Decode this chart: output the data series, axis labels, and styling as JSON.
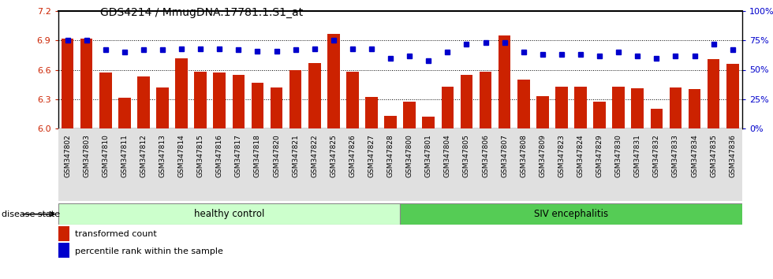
{
  "title": "GDS4214 / MmugDNA.17781.1.S1_at",
  "samples": [
    "GSM347802",
    "GSM347803",
    "GSM347810",
    "GSM347811",
    "GSM347812",
    "GSM347813",
    "GSM347814",
    "GSM347815",
    "GSM347816",
    "GSM347817",
    "GSM347818",
    "GSM347820",
    "GSM347821",
    "GSM347822",
    "GSM347825",
    "GSM347826",
    "GSM347827",
    "GSM347828",
    "GSM347800",
    "GSM347801",
    "GSM347804",
    "GSM347805",
    "GSM347806",
    "GSM347807",
    "GSM347808",
    "GSM347809",
    "GSM347823",
    "GSM347824",
    "GSM347829",
    "GSM347830",
    "GSM347831",
    "GSM347832",
    "GSM347833",
    "GSM347834",
    "GSM347835",
    "GSM347836"
  ],
  "bar_values": [
    6.92,
    6.92,
    6.57,
    6.31,
    6.53,
    6.42,
    6.72,
    6.58,
    6.57,
    6.55,
    6.47,
    6.42,
    6.6,
    6.67,
    6.97,
    6.58,
    6.32,
    6.13,
    6.27,
    6.12,
    6.43,
    6.55,
    6.58,
    6.95,
    6.5,
    6.33,
    6.43,
    6.43,
    6.27,
    6.43,
    6.41,
    6.2,
    6.42,
    6.4,
    6.71,
    6.66
  ],
  "percentile_values": [
    75,
    75,
    67,
    65,
    67,
    67,
    68,
    68,
    68,
    67,
    66,
    66,
    67,
    68,
    75,
    68,
    68,
    60,
    62,
    58,
    65,
    72,
    73,
    73,
    65,
    63,
    63,
    63,
    62,
    65,
    62,
    60,
    62,
    62,
    72,
    67
  ],
  "ylim_left": [
    6.0,
    7.2
  ],
  "ylim_right": [
    0,
    100
  ],
  "yticks_left": [
    6.0,
    6.3,
    6.6,
    6.9,
    7.2
  ],
  "yticks_right": [
    0,
    25,
    50,
    75,
    100
  ],
  "bar_color": "#cc2200",
  "dot_color": "#0000cc",
  "healthy_count": 18,
  "healthy_label": "healthy control",
  "siv_label": "SIV encephalitis",
  "disease_state_label": "disease state",
  "legend_bar_label": "transformed count",
  "legend_dot_label": "percentile rank within the sample",
  "healthy_bg": "#ccffcc",
  "siv_bg": "#55cc55",
  "bg_color": "#ffffff"
}
